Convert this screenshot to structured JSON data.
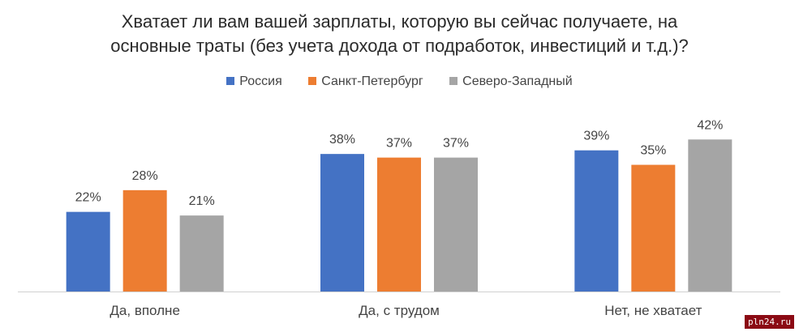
{
  "chart_data": {
    "type": "bar",
    "title_line1": "Хватает ли вам вашей зарплаты, которую вы сейчас получаете, на",
    "title_line2": "основные траты  (без учета дохода от подработок, инвестиций и т.д.)?",
    "categories": [
      "Да, вполне",
      "Да, с трудом",
      "Нет, не хватает"
    ],
    "series": [
      {
        "name": "Россия",
        "color": "#4472c4",
        "values": [
          22,
          38,
          39
        ]
      },
      {
        "name": "Санкт-Петербург",
        "color": "#ed7d31",
        "values": [
          28,
          37,
          35
        ]
      },
      {
        "name": "Северо-Западный",
        "color": "#a5a5a5",
        "values": [
          21,
          37,
          42
        ]
      }
    ],
    "value_suffix": "%",
    "ylim": [
      0,
      50
    ],
    "grid": false,
    "legend_position": "top"
  },
  "watermark": "pln24.ru"
}
